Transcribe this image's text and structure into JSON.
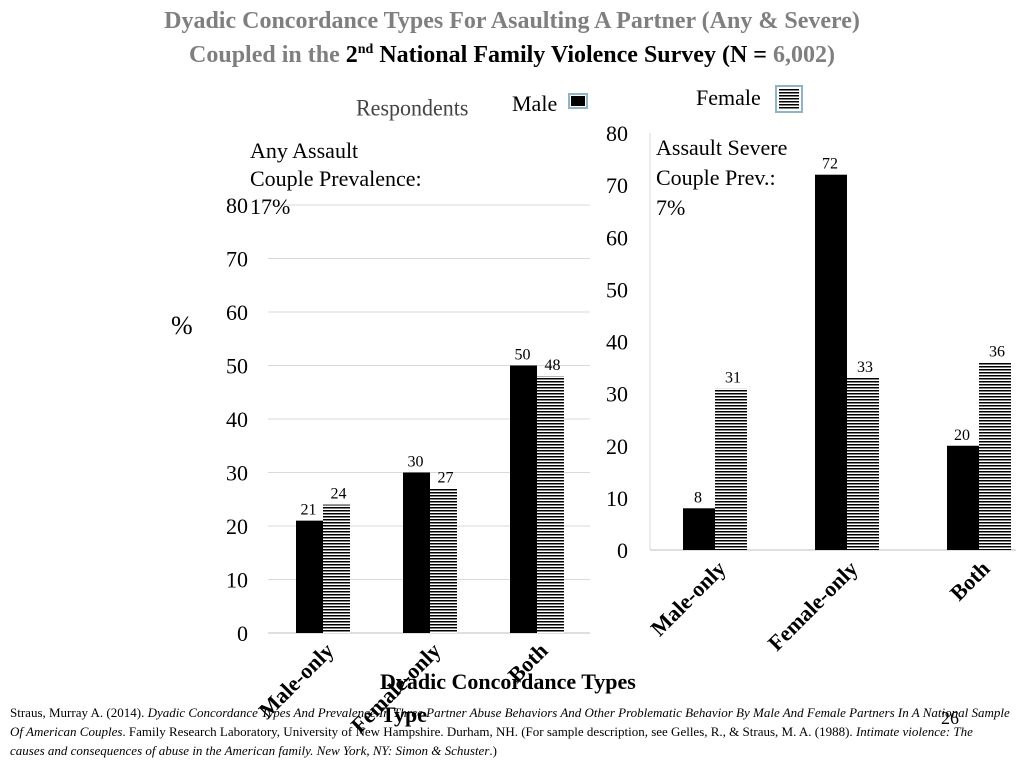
{
  "title": {
    "line1": "Dyadic Concordance Types For Asaulting A Partner (Any & Severe)",
    "line2_part1": "Coupled in the ",
    "line2_ord": "2",
    "line2_sup": "nd",
    "line2_part2": " National Family Violence Survey (N = ",
    "line2_n": "6,002",
    "line2_close": ")"
  },
  "respondents_label": "Respondents",
  "legend": {
    "male": "Male",
    "female": "Female"
  },
  "colors": {
    "male": "#000000",
    "female_stripe": "#000000",
    "gridline": "#d9d9d9",
    "title_gray": "#7f7f7f"
  },
  "y_axis_label": "%",
  "x_axis_title_line1": "Dyadic Concordance Types",
  "x_axis_title_line2": "Type",
  "chart_data": [
    {
      "type": "bar",
      "annotation_lines": [
        "Any Assault",
        "Couple Prevalence:",
        "17%"
      ],
      "categories": [
        "Male-only",
        "Female-only",
        "Both"
      ],
      "series": [
        {
          "name": "Male",
          "values": [
            21,
            30,
            50
          ]
        },
        {
          "name": "Female",
          "values": [
            24,
            27,
            48
          ]
        }
      ],
      "ylim": [
        0,
        80
      ],
      "yticks": [
        0,
        10,
        20,
        30,
        40,
        50,
        60,
        70,
        80
      ],
      "grid": true
    },
    {
      "type": "bar",
      "annotation_lines": [
        "Assault Severe",
        "Couple Prev.:",
        "7%"
      ],
      "categories": [
        "Male-only",
        "Female-only",
        "Both"
      ],
      "series": [
        {
          "name": "Male",
          "values": [
            8,
            72,
            20
          ]
        },
        {
          "name": "Female",
          "values": [
            31,
            33,
            36
          ]
        }
      ],
      "ylim": [
        0,
        80
      ],
      "yticks": [
        0,
        10,
        20,
        30,
        40,
        50,
        60,
        70,
        80
      ],
      "grid": false
    }
  ],
  "page_number": "26",
  "footnote": {
    "author": "Straus, Murray A. (2014). ",
    "title1": "Dyadic Concordance Types And Prevalence In Three Partner Abuse Behaviors And Other Problematic Behavior By Male And Female Partners  In A National Sample Of  American Couples",
    "mid": ". Family Research Laboratory, University of New Hampshire. Durham, NH. (For sample description, see Gelles, R., & Straus, M. A. (1988). ",
    "title2": "Intimate violence: The causes and consequences of abuse in the American family. New York, NY: Simon & Schuster",
    "end": ".)"
  }
}
